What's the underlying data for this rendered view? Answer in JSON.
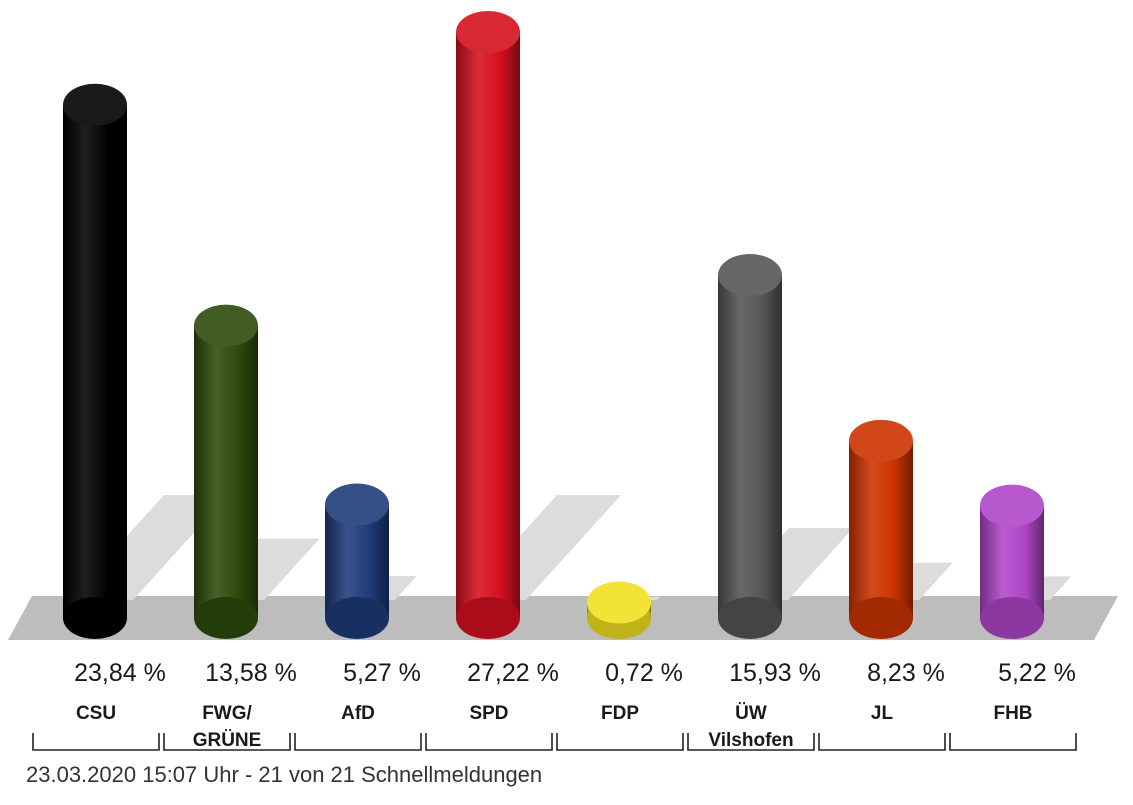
{
  "chart_data": {
    "type": "bar",
    "categories": [
      {
        "lines": [
          "CSU"
        ]
      },
      {
        "lines": [
          "FWG/",
          "GRÜNE"
        ]
      },
      {
        "lines": [
          "AfD"
        ]
      },
      {
        "lines": [
          "SPD"
        ]
      },
      {
        "lines": [
          "FDP"
        ]
      },
      {
        "lines": [
          "ÜW",
          "Vilshofen"
        ]
      },
      {
        "lines": [
          "JL"
        ]
      },
      {
        "lines": [
          "FHB"
        ]
      }
    ],
    "values": [
      23.84,
      13.58,
      5.27,
      27.22,
      0.72,
      15.93,
      8.23,
      5.22
    ],
    "value_labels": [
      "23,84 %",
      "13,58 %",
      "5,27 %",
      "27,22 %",
      "0,72 %",
      "15,93 %",
      "8,23 %",
      "5,22 %"
    ],
    "colors": [
      "#000000",
      "#2d4a0c",
      "#1e3b7a",
      "#d5101e",
      "#f0e020",
      "#555555",
      "#cc3300",
      "#b045c8"
    ],
    "ylim": [
      0,
      27.22
    ]
  },
  "footer": "23.03.2020 15:07 Uhr - 21 von 21 Schnellmeldungen"
}
